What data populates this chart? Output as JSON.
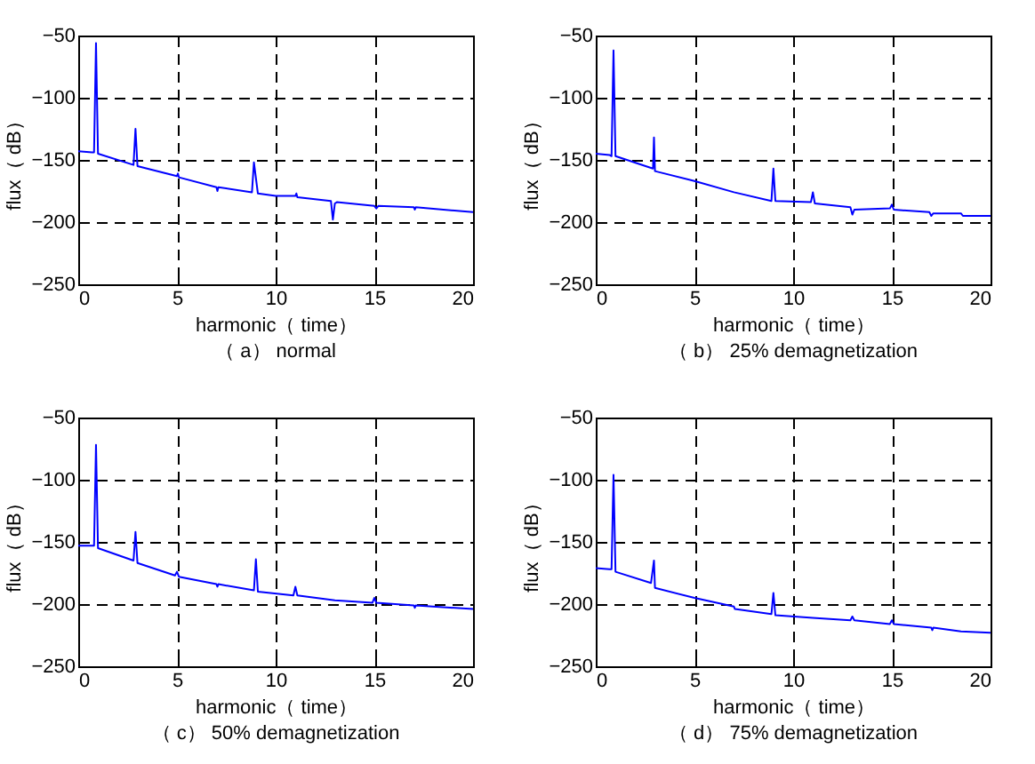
{
  "chart_data": [
    {
      "type": "line",
      "title": "（ a） normal",
      "xlabel": "harmonic（ time）",
      "ylabel": "flux（ dB）",
      "xlim": [
        0,
        20
      ],
      "ylim": [
        -250,
        -50
      ],
      "xticks": [
        0,
        5,
        10,
        15,
        20
      ],
      "yticks": [
        -250,
        -200,
        -150,
        -100,
        -50
      ],
      "grid": true,
      "line_style": "solid",
      "x": [
        0,
        0.7,
        0.8,
        0.9,
        1.0,
        2.8,
        2.9,
        3.0,
        5,
        5.05,
        5.1,
        7,
        7.05,
        7.1,
        8.8,
        8.9,
        9.1,
        10,
        11,
        11.05,
        11.1,
        12.8,
        12.9,
        13,
        13.1,
        15,
        15.1,
        15.2,
        17,
        17.05,
        17.1,
        20
      ],
      "series": [
        {
          "color": "#0000ff",
          "values": [
            -143,
            -144,
            -144,
            -56,
            -145,
            -154,
            -125,
            -155,
            -163,
            -161,
            -164,
            -172,
            -175,
            -172,
            -176,
            -152,
            -177,
            -179,
            -179,
            -177,
            -180,
            -183,
            -198,
            -185,
            -184,
            -187,
            -189,
            -187,
            -188,
            -190,
            -188,
            -192
          ]
        }
      ]
    },
    {
      "type": "line",
      "title": "（ b） 25% demagnetization",
      "xlabel": "harmonic（ time）",
      "ylabel": "flux（ dB）",
      "xlim": [
        0,
        20
      ],
      "ylim": [
        -250,
        -50
      ],
      "xticks": [
        0,
        5,
        10,
        15,
        20
      ],
      "yticks": [
        -250,
        -200,
        -150,
        -100,
        -50
      ],
      "grid": true,
      "line_style": "solid",
      "x": [
        0,
        0.7,
        0.8,
        0.9,
        1.0,
        2.9,
        2.95,
        3.0,
        5,
        7,
        8.9,
        9.0,
        9.1,
        10.9,
        11.0,
        11.1,
        12.9,
        13.0,
        13.1,
        14.9,
        15.0,
        15.1,
        16.9,
        17.0,
        17.1,
        18.5,
        18.6,
        20
      ],
      "series": [
        {
          "color": "#0000ff",
          "values": [
            -145,
            -146,
            -147,
            -62,
            -147,
            -157,
            -132,
            -159,
            -167,
            -176,
            -183,
            -157,
            -183,
            -184,
            -176,
            -185,
            -188,
            -194,
            -190,
            -189,
            -186,
            -190,
            -192,
            -195,
            -193,
            -193,
            -195,
            -195
          ]
        }
      ]
    },
    {
      "type": "line",
      "title": "（ c） 50% demagnetization",
      "xlabel": "harmonic（ time）",
      "ylabel": "flux（ dB）",
      "xlim": [
        0,
        20
      ],
      "ylim": [
        -250,
        -50
      ],
      "xticks": [
        0,
        5,
        10,
        15,
        20
      ],
      "yticks": [
        -250,
        -200,
        -150,
        -100,
        -50
      ],
      "grid": true,
      "line_style": "solid",
      "x": [
        0,
        0.7,
        0.8,
        0.9,
        1.0,
        2.8,
        2.9,
        3.0,
        4.9,
        5.0,
        5.1,
        7,
        7.05,
        7.1,
        8.9,
        9.0,
        9.1,
        10.9,
        11.0,
        11.1,
        13,
        14.9,
        15.0,
        15.1,
        17,
        17.05,
        17.1,
        20
      ],
      "series": [
        {
          "color": "#0000ff",
          "values": [
            -153,
            -153,
            -153,
            -72,
            -155,
            -165,
            -142,
            -167,
            -177,
            -174,
            -178,
            -184,
            -186,
            -184,
            -189,
            -164,
            -190,
            -193,
            -186,
            -193,
            -197,
            -199,
            -195,
            -199,
            -201,
            -203,
            -201,
            -204
          ]
        }
      ]
    },
    {
      "type": "line",
      "title": "（ d） 75% demagnetization",
      "xlabel": "harmonic（ time）",
      "ylabel": "flux（ dB）",
      "xlim": [
        0,
        20
      ],
      "ylim": [
        -250,
        -50
      ],
      "xticks": [
        0,
        5,
        10,
        15,
        20
      ],
      "yticks": [
        -250,
        -200,
        -150,
        -100,
        -50
      ],
      "grid": true,
      "line_style": "solid",
      "x": [
        0,
        0.7,
        0.8,
        0.9,
        1.0,
        2.8,
        2.95,
        3.0,
        5,
        7,
        7.05,
        8.9,
        9.0,
        9.1,
        11,
        12.9,
        13,
        13.1,
        14.9,
        15.0,
        15.1,
        17,
        17.05,
        17.1,
        18.5,
        20
      ],
      "series": [
        {
          "color": "#0000ff",
          "values": [
            -171,
            -172,
            -172,
            -96,
            -174,
            -183,
            -165,
            -187,
            -195,
            -202,
            -204,
            -208,
            -191,
            -209,
            -211,
            -213,
            -210,
            -213,
            -216,
            -213,
            -216,
            -219,
            -221,
            -219,
            -222,
            -223
          ]
        }
      ]
    }
  ]
}
